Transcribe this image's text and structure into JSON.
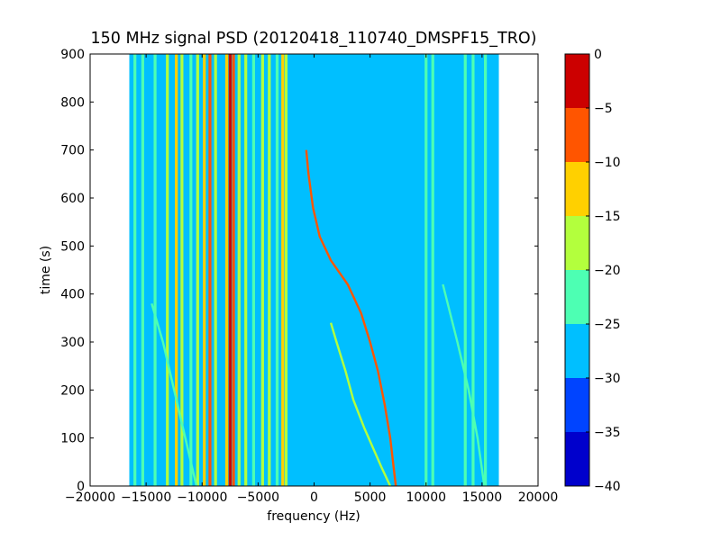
{
  "chart_data": {
    "type": "heatmap",
    "title": "150 MHz signal PSD (20120418_110740_DMSPF15_TRO)",
    "xlabel": "frequency (Hz)",
    "ylabel": "time (s)",
    "xlim": [
      -20000,
      20000
    ],
    "ylim": [
      0,
      900
    ],
    "xticks": [
      -20000,
      -15000,
      -10000,
      -5000,
      0,
      5000,
      10000,
      15000,
      20000
    ],
    "yticks": [
      0,
      100,
      200,
      300,
      400,
      500,
      600,
      700,
      800,
      900
    ],
    "data_extent_x": [
      -16500,
      16500
    ],
    "background_level": -27.5,
    "colorbar": {
      "levels": [
        -40,
        -35,
        -30,
        -25,
        -20,
        -15,
        -10,
        -5,
        0
      ],
      "colors": [
        "#0000cc",
        "#0044ff",
        "#00bfff",
        "#4dffb3",
        "#b3ff3d",
        "#ffd000",
        "#ff5500",
        "#cc0000"
      ]
    },
    "constant_lines": [
      {
        "frequency": -16000,
        "level": -22.5
      },
      {
        "frequency": -15300,
        "level": -22.5
      },
      {
        "frequency": -14200,
        "level": -22.5
      },
      {
        "frequency": -13100,
        "level": -17.5
      },
      {
        "frequency": -12300,
        "level": -12.5
      },
      {
        "frequency": -11800,
        "level": -17.5
      },
      {
        "frequency": -11000,
        "level": -22.5
      },
      {
        "frequency": -10400,
        "level": -17.5
      },
      {
        "frequency": -9800,
        "level": -12.5
      },
      {
        "frequency": -9300,
        "level": -7.5
      },
      {
        "frequency": -8800,
        "level": -17.5
      },
      {
        "frequency": -7800,
        "level": -12.5
      },
      {
        "frequency": -7500,
        "level": -2.5
      },
      {
        "frequency": -7200,
        "level": -7.5
      },
      {
        "frequency": -6700,
        "level": -17.5
      },
      {
        "frequency": -6100,
        "level": -17.5
      },
      {
        "frequency": -5400,
        "level": -22.5
      },
      {
        "frequency": -4600,
        "level": -17.5
      },
      {
        "frequency": -4000,
        "level": -17.5
      },
      {
        "frequency": -3300,
        "level": -22.5
      },
      {
        "frequency": -2800,
        "level": -12.5
      },
      {
        "frequency": -2500,
        "level": -17.5
      },
      {
        "frequency": 10000,
        "level": -22.5
      },
      {
        "frequency": 10600,
        "level": -22.5
      },
      {
        "frequency": 13500,
        "level": -22.5
      },
      {
        "frequency": 14200,
        "level": -22.5
      },
      {
        "frequency": 15300,
        "level": -22.5
      }
    ],
    "doppler_traces": [
      {
        "level": -7.5,
        "points": [
          [
            -700,
            700
          ],
          [
            -500,
            650
          ],
          [
            -100,
            580
          ],
          [
            500,
            520
          ],
          [
            1500,
            470
          ],
          [
            3000,
            420
          ],
          [
            4200,
            360
          ],
          [
            5000,
            300
          ],
          [
            5700,
            240
          ],
          [
            6300,
            170
          ],
          [
            6800,
            100
          ],
          [
            7100,
            40
          ],
          [
            7300,
            0
          ]
        ]
      },
      {
        "level": -17.5,
        "points": [
          [
            1500,
            340
          ],
          [
            2000,
            300
          ],
          [
            2800,
            240
          ],
          [
            3500,
            180
          ],
          [
            4500,
            120
          ],
          [
            6000,
            40
          ],
          [
            6800,
            0
          ]
        ]
      },
      {
        "level": -22.5,
        "points": [
          [
            -14500,
            380
          ],
          [
            -13500,
            300
          ],
          [
            -12500,
            200
          ],
          [
            -11500,
            100
          ],
          [
            -10500,
            0
          ]
        ]
      },
      {
        "level": -22.5,
        "points": [
          [
            11500,
            420
          ],
          [
            12800,
            300
          ],
          [
            13800,
            200
          ],
          [
            14600,
            100
          ],
          [
            15200,
            0
          ]
        ]
      }
    ]
  }
}
